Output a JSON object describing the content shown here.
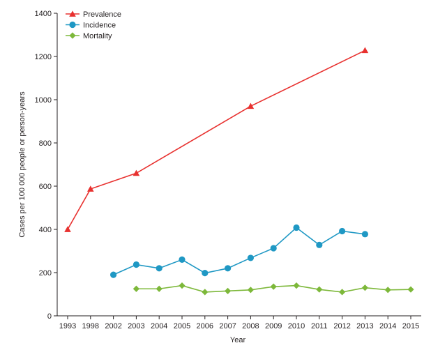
{
  "chart_data": {
    "type": "line",
    "title": "",
    "xlabel": "Year",
    "ylabel": "Cases per 100 000 people or person-years",
    "categories": [
      "1993",
      "1998",
      "2002",
      "2003",
      "2004",
      "2005",
      "2006",
      "2007",
      "2008",
      "2009",
      "2010",
      "2011",
      "2012",
      "2013",
      "2014",
      "2015"
    ],
    "ylim": [
      0,
      1400
    ],
    "yticks": [
      "0",
      "200",
      "400",
      "600",
      "800",
      "1000",
      "1200",
      "1400"
    ],
    "grid": false,
    "legend_position": "top-left",
    "series": [
      {
        "name": "Prevalence",
        "color": "#e8312f",
        "marker": "triangle",
        "x": [
          "1993",
          "1998",
          "2003",
          "2008",
          "2013"
        ],
        "values": [
          400,
          587,
          660,
          970,
          1228
        ]
      },
      {
        "name": "Incidence",
        "color": "#1f98c4",
        "marker": "circle",
        "x": [
          "2002",
          "2003",
          "2004",
          "2005",
          "2006",
          "2007",
          "2008",
          "2009",
          "2010",
          "2011",
          "2012",
          "2013"
        ],
        "values": [
          190,
          237,
          220,
          260,
          198,
          220,
          268,
          313,
          408,
          328,
          392,
          378
        ]
      },
      {
        "name": "Mortality",
        "color": "#7db83a",
        "marker": "diamond",
        "x": [
          "2003",
          "2004",
          "2005",
          "2006",
          "2007",
          "2008",
          "2009",
          "2010",
          "2011",
          "2012",
          "2013",
          "2014",
          "2015"
        ],
        "values": [
          125,
          125,
          140,
          110,
          115,
          120,
          135,
          140,
          122,
          110,
          130,
          120,
          122
        ]
      }
    ]
  }
}
